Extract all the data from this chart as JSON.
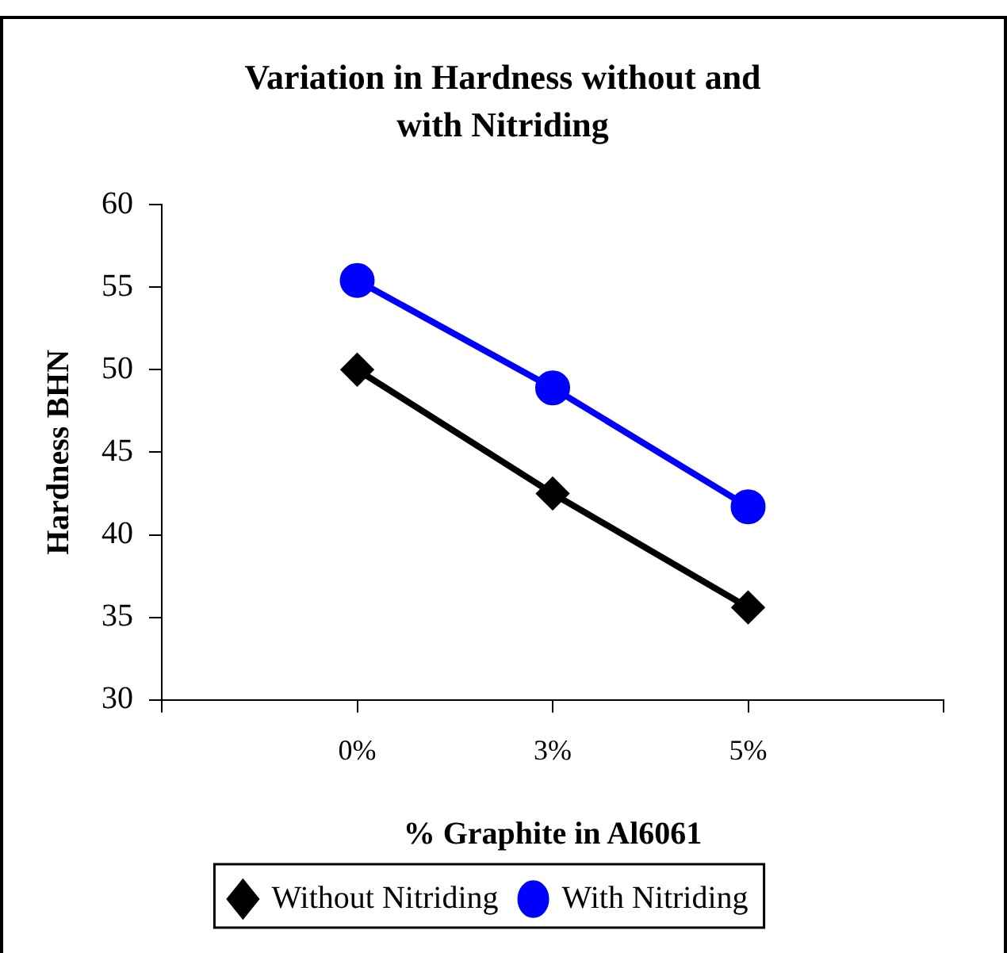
{
  "chart_data": {
    "type": "line",
    "title": "Variation in Hardness without and with Nitriding",
    "xlabel": "% Graphite in Al6061",
    "ylabel": "Hardness BHN",
    "categories": [
      null,
      "0%",
      "3%",
      "5%",
      null
    ],
    "series": [
      {
        "name": "Without Nitriding",
        "color": "#000000",
        "marker": "diamond",
        "values": [
          null,
          50,
          42.5,
          35.6,
          null
        ]
      },
      {
        "name": "With Nitriding",
        "color": "#0000ff",
        "marker": "circle",
        "values": [
          null,
          55.4,
          48.9,
          41.7,
          null
        ]
      }
    ],
    "ylim": [
      30,
      60
    ],
    "yticks": [
      30,
      35,
      40,
      45,
      50,
      55,
      60
    ],
    "grid": false,
    "legend": "bottom",
    "line_style": "solid"
  }
}
